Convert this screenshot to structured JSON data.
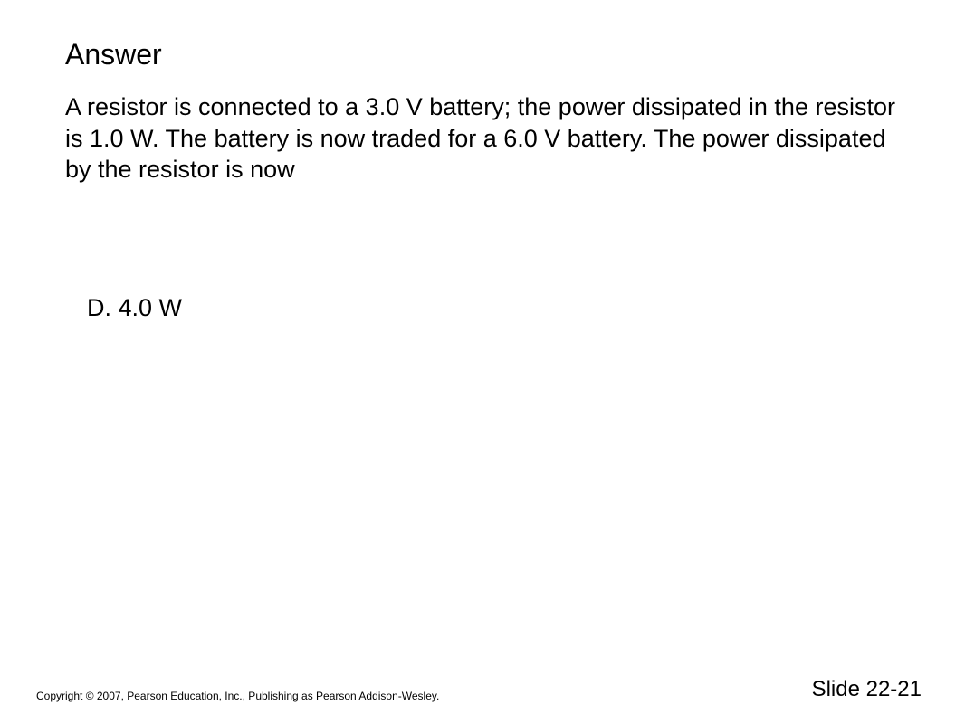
{
  "slide": {
    "title": "Answer",
    "question": "A resistor is connected to a 3.0 V battery; the power dissipated in the resistor is 1.0 W. The battery is now traded for a 6.0 V battery. The power dissipated by the resistor is now",
    "answer": "D.  4.0 W",
    "copyright": "Copyright © 2007, Pearson Education, Inc., Publishing as Pearson Addison-Wesley.",
    "slideNumber": "Slide 22-21"
  },
  "style": {
    "background_color": "#ffffff",
    "text_color": "#000000",
    "title_fontsize": 32,
    "body_fontsize": 27,
    "copyright_fontsize": 12,
    "slide_number_fontsize": 24,
    "font_family": "Arial"
  }
}
